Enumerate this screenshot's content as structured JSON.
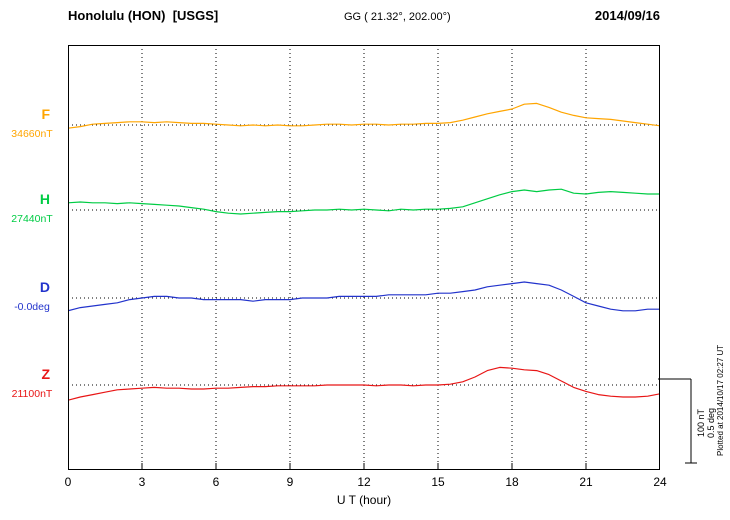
{
  "header": {
    "station": "Honolulu (HON)  [USGS]",
    "coords": "GG ( 21.32°, 202.00°)",
    "date": "2014/09/16"
  },
  "axis": {
    "xlabel": "U T (hour)"
  },
  "scale_bar": {
    "nt_label": "100 nT",
    "deg_label": "0.5 deg"
  },
  "note": {
    "plotted_at": "Plotted at 2014/10/17 02:27 UT"
  },
  "chart_data": {
    "type": "line",
    "title": "Honolulu (HON) [USGS] magnetogram — 2014/09/16",
    "xlabel": "U T (hour)",
    "x_range": [
      0,
      24
    ],
    "x_step": 0.5,
    "x_ticks": [
      0,
      3,
      6,
      9,
      12,
      15,
      18,
      21,
      24
    ],
    "grid": "dotted vertical lines at 3-hour intervals; dotted horizontal baseline per trace",
    "legend_position": "left margin (trace letter + baseline value)",
    "scale": {
      "nT_per_division": 100,
      "deg_per_division": 0.5
    },
    "values_are": "offsets from each trace baseline, in the series units, sampled every 0.5 h from 0 to 24",
    "series": [
      {
        "name": "F",
        "units": "nT",
        "color": "#FFA500",
        "baseline": 34660,
        "baseline_label": "34660nT",
        "values": [
          -4,
          -2,
          1,
          2,
          3,
          4,
          4,
          3,
          4,
          3,
          2,
          2,
          1,
          0,
          -1,
          0,
          -1,
          0,
          -1,
          -1,
          0,
          1,
          1,
          0,
          1,
          1,
          0,
          1,
          1,
          2,
          2,
          3,
          6,
          10,
          14,
          17,
          20,
          26,
          27,
          22,
          16,
          12,
          9,
          8,
          7,
          5,
          3,
          1,
          -1
        ]
      },
      {
        "name": "H",
        "units": "nT",
        "color": "#00CC44",
        "baseline": 27440,
        "baseline_label": "27440nT",
        "values": [
          9,
          10,
          9,
          9,
          8,
          9,
          8,
          7,
          6,
          5,
          3,
          1,
          -2,
          -4,
          -5,
          -4,
          -3,
          -2,
          -2,
          -1,
          0,
          0,
          1,
          0,
          1,
          0,
          -1,
          1,
          0,
          1,
          1,
          2,
          4,
          9,
          14,
          19,
          23,
          25,
          23,
          25,
          26,
          21,
          20,
          22,
          23,
          22,
          21,
          20,
          20
        ]
      },
      {
        "name": "D",
        "units": "deg",
        "color": "#2233CC",
        "baseline": 0,
        "baseline_label": "-0.0deg",
        "values": [
          -0.08,
          -0.06,
          -0.05,
          -0.04,
          -0.03,
          -0.01,
          0,
          0.01,
          0.01,
          0,
          0,
          -0.01,
          -0.01,
          -0.01,
          -0.01,
          -0.02,
          -0.01,
          -0.01,
          -0.01,
          0,
          0,
          0,
          0.01,
          0.01,
          0.01,
          0.01,
          0.02,
          0.02,
          0.02,
          0.02,
          0.03,
          0.03,
          0.04,
          0.05,
          0.07,
          0.08,
          0.09,
          0.1,
          0.09,
          0.08,
          0.05,
          0.01,
          -0.03,
          -0.05,
          -0.07,
          -0.08,
          -0.08,
          -0.07,
          -0.07
        ]
      },
      {
        "name": "Z",
        "units": "nT",
        "color": "#E81515",
        "baseline": 21100,
        "baseline_label": "21100nT",
        "values": [
          -19,
          -15,
          -12,
          -9,
          -6,
          -5,
          -4,
          -3,
          -4,
          -4,
          -5,
          -5,
          -4,
          -4,
          -3,
          -2,
          -2,
          -1,
          -1,
          -1,
          -1,
          0,
          0,
          0,
          0,
          -1,
          0,
          0,
          -1,
          0,
          0,
          1,
          4,
          10,
          18,
          22,
          21,
          19,
          18,
          13,
          5,
          -3,
          -8,
          -12,
          -14,
          -15,
          -15,
          -14,
          -11
        ]
      }
    ]
  }
}
